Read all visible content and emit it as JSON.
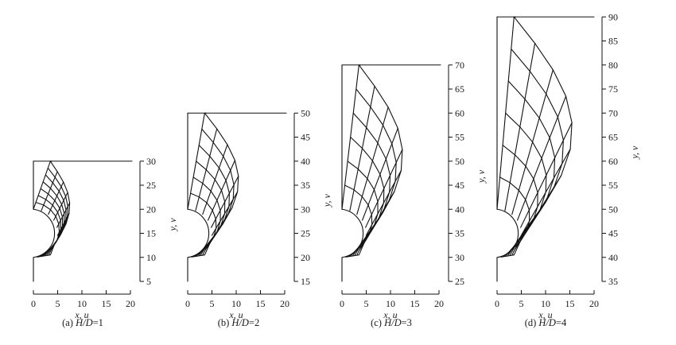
{
  "panels": [
    {
      "id": "a",
      "caption_prefix": "(a) ",
      "caption_var": "H/D",
      "caption_value": "=1",
      "xlabel": "x, u",
      "ylabel": "y, v",
      "x_ticks": [
        "0",
        "5",
        "10",
        "15",
        "20"
      ],
      "y_ticks": [
        "5",
        "10",
        "15",
        "20",
        "25",
        "30"
      ]
    },
    {
      "id": "b",
      "caption_prefix": "(b) ",
      "caption_var": "H/D",
      "caption_value": "=2",
      "xlabel": "x, u",
      "ylabel": "y, v",
      "x_ticks": [
        "0",
        "5",
        "10",
        "15",
        "20"
      ],
      "y_ticks": [
        "15",
        "20",
        "25",
        "30",
        "35",
        "40",
        "45",
        "50"
      ]
    },
    {
      "id": "c",
      "caption_prefix": "(c) ",
      "caption_var": "H/D",
      "caption_value": "=3",
      "xlabel": "x, u",
      "ylabel": "y, v",
      "x_ticks": [
        "0",
        "5",
        "10",
        "15",
        "20"
      ],
      "y_ticks": [
        "25",
        "30",
        "35",
        "40",
        "45",
        "50",
        "55",
        "60",
        "65",
        "70"
      ]
    },
    {
      "id": "d",
      "caption_prefix": "(d) ",
      "caption_var": "H/D",
      "caption_value": "=4",
      "xlabel": "x, u",
      "ylabel": "y, v",
      "x_ticks": [
        "0",
        "5",
        "10",
        "15",
        "20"
      ],
      "y_ticks": [
        "35",
        "40",
        "45",
        "50",
        "55",
        "60",
        "65",
        "70",
        "75",
        "80",
        "85",
        "90"
      ]
    }
  ]
}
